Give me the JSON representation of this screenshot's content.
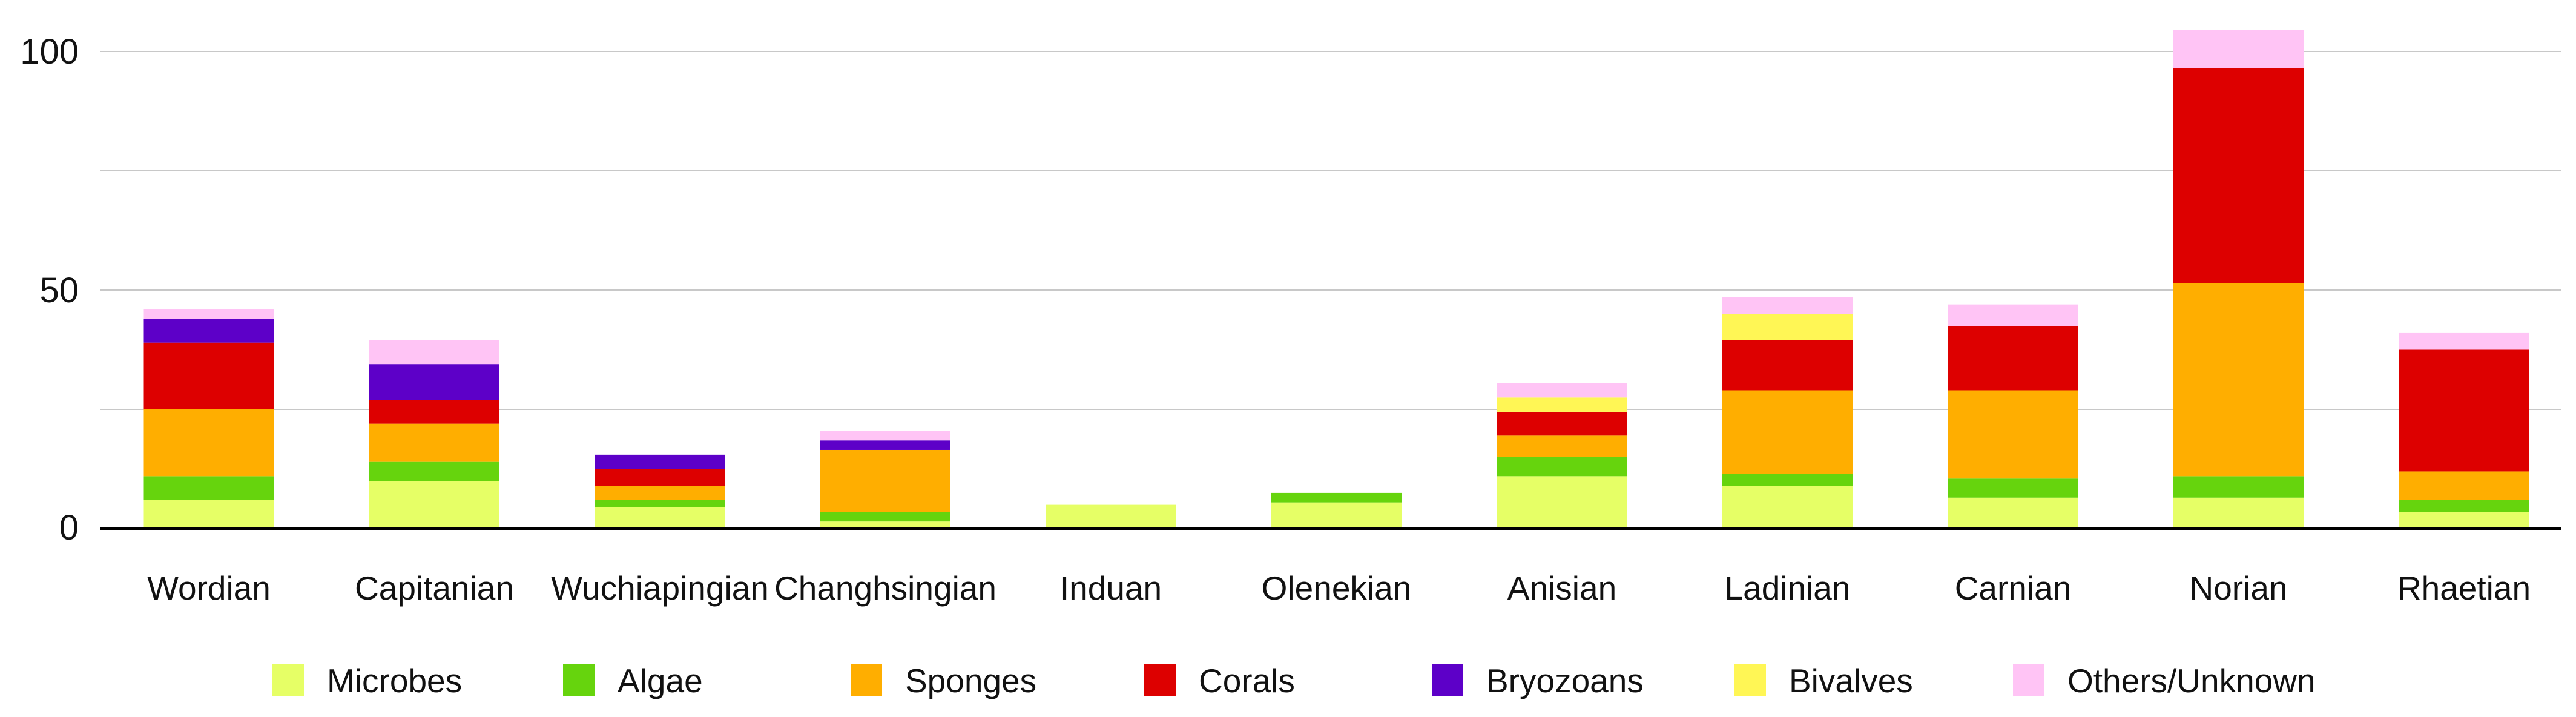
{
  "chart_data": {
    "type": "bar",
    "stacked": true,
    "title": "",
    "xlabel": "",
    "ylabel": "",
    "ylim": [
      0,
      105
    ],
    "yticks": [
      0,
      50,
      100
    ],
    "gridlines": [
      0,
      25,
      50,
      75,
      100
    ],
    "grid": true,
    "legend_position": "bottom",
    "categories": [
      "Wordian",
      "Capitanian",
      "Wuchiapingian",
      "Changhsingian",
      "Induan",
      "Olenekian",
      "Anisian",
      "Ladinian",
      "Carnian",
      "Norian",
      "Rhaetian"
    ],
    "series": [
      {
        "name": "Microbes",
        "color": "#E6FF66",
        "values": [
          6,
          10,
          4.5,
          1.5,
          5,
          5.5,
          11,
          9,
          6.5,
          6.5,
          3.5
        ]
      },
      {
        "name": "Algae",
        "color": "#66D40D",
        "values": [
          5,
          4,
          1.5,
          2,
          0,
          2,
          4,
          2.5,
          4,
          4.5,
          2.5
        ]
      },
      {
        "name": "Sponges",
        "color": "#FFAE00",
        "values": [
          14,
          8,
          3,
          13,
          0,
          0,
          4.5,
          17.5,
          18.5,
          40.5,
          6
        ]
      },
      {
        "name": "Corals",
        "color": "#DD0000",
        "values": [
          14,
          5,
          3.5,
          0,
          0,
          0,
          5,
          10.5,
          13.5,
          45,
          25.5
        ]
      },
      {
        "name": "Bryozoans",
        "color": "#5D00C8",
        "values": [
          5,
          7.5,
          3,
          2,
          0,
          0,
          0,
          0,
          0,
          0,
          0
        ]
      },
      {
        "name": "Bivalves",
        "color": "#FFF655",
        "values": [
          0,
          0,
          0,
          0,
          0,
          0,
          3,
          5.5,
          0,
          0,
          0
        ]
      },
      {
        "name": "Others/Unknown",
        "color": "#FFC4F5",
        "values": [
          2,
          5,
          0,
          2,
          0,
          0,
          3,
          3.5,
          4.5,
          8,
          3.5
        ]
      }
    ]
  }
}
